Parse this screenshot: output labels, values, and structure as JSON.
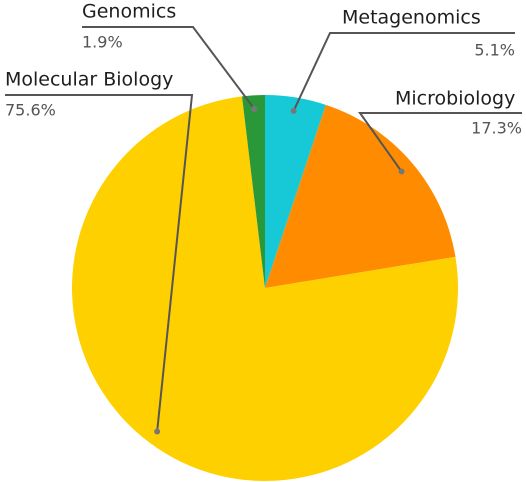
{
  "chart_data": {
    "type": "pie",
    "categories": [
      "Metagenomics",
      "Microbiology",
      "Molecular Biology",
      "Genomics"
    ],
    "values": [
      5.1,
      17.3,
      75.6,
      1.9
    ],
    "value_labels": [
      "5.1%",
      "17.3%",
      "75.6%",
      "1.9%"
    ],
    "colors": [
      "#17c8d6",
      "#ff8c00",
      "#ffd000",
      "#2a9838"
    ]
  }
}
